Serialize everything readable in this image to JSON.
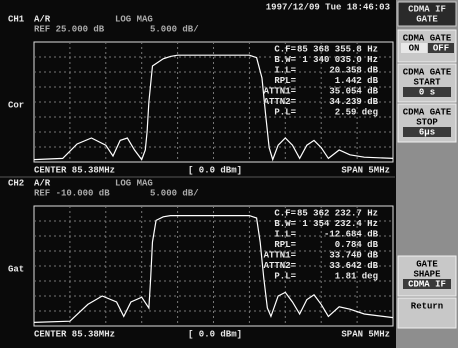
{
  "header": {
    "datetime": "1997/12/09 Tue 18:46:03",
    "menu_title": [
      "CDMA IF",
      "GATE"
    ]
  },
  "softkeys": [
    {
      "label": [
        "CDMA GATE"
      ],
      "options": [
        "ON",
        "OFF"
      ]
    },
    {
      "label": [
        "CDMA GATE",
        "START"
      ],
      "value": "0 s"
    },
    {
      "label": [
        "CDMA GATE",
        "STOP"
      ],
      "value": "6µs"
    },
    {
      "label": [
        "GATE",
        "SHAPE"
      ],
      "value": "CDMA IF"
    },
    {
      "label": [
        "Return"
      ]
    }
  ],
  "channels": [
    {
      "channel": "CH1",
      "measurement": "A/R",
      "format": "LOG MAG",
      "reference": "REF 25.000 dB",
      "scale": "5.000 dB/",
      "side_label": "Cor",
      "readouts": [
        {
          "label": "C.F=",
          "value": "85 368 355.8 Hz"
        },
        {
          "label": "B.W=",
          "value": "1 340 035.0 Hz"
        },
        {
          "label": "I.L=",
          "value": "20.358 dB"
        },
        {
          "label": "RPL=",
          "value": "1.442 dB"
        },
        {
          "label": "ATTN1=",
          "value": "35.054 dB"
        },
        {
          "label": "ATTN2=",
          "value": "34.239 dB"
        },
        {
          "label": "P.L=",
          "value": "2.59 deg"
        }
      ],
      "center": "CENTER 85.38MHz",
      "power": "[ 0.0 dBm]",
      "span": "SPAN 5MHz"
    },
    {
      "channel": "CH2",
      "measurement": "A/R",
      "format": "LOG MAG",
      "reference": "REF -10.000 dB",
      "scale": "5.000 dB/",
      "side_label": "Gat",
      "readouts": [
        {
          "label": "C.F=",
          "value": "85 362 232.7 Hz"
        },
        {
          "label": "B.W=",
          "value": "1 354 232.4 Hz"
        },
        {
          "label": "I.L=",
          "value": "-12.684 dB"
        },
        {
          "label": "RPL=",
          "value": "0.784 dB"
        },
        {
          "label": "ATTN1=",
          "value": "33.740 dB"
        },
        {
          "label": "ATTN2=",
          "value": "33.642 dB"
        },
        {
          "label": "P.L=",
          "value": "1.81 deg"
        }
      ],
      "center": "CENTER 85.38MHz",
      "power": "[ 0.0 dBm]",
      "span": "SPAN 5MHz"
    }
  ]
}
